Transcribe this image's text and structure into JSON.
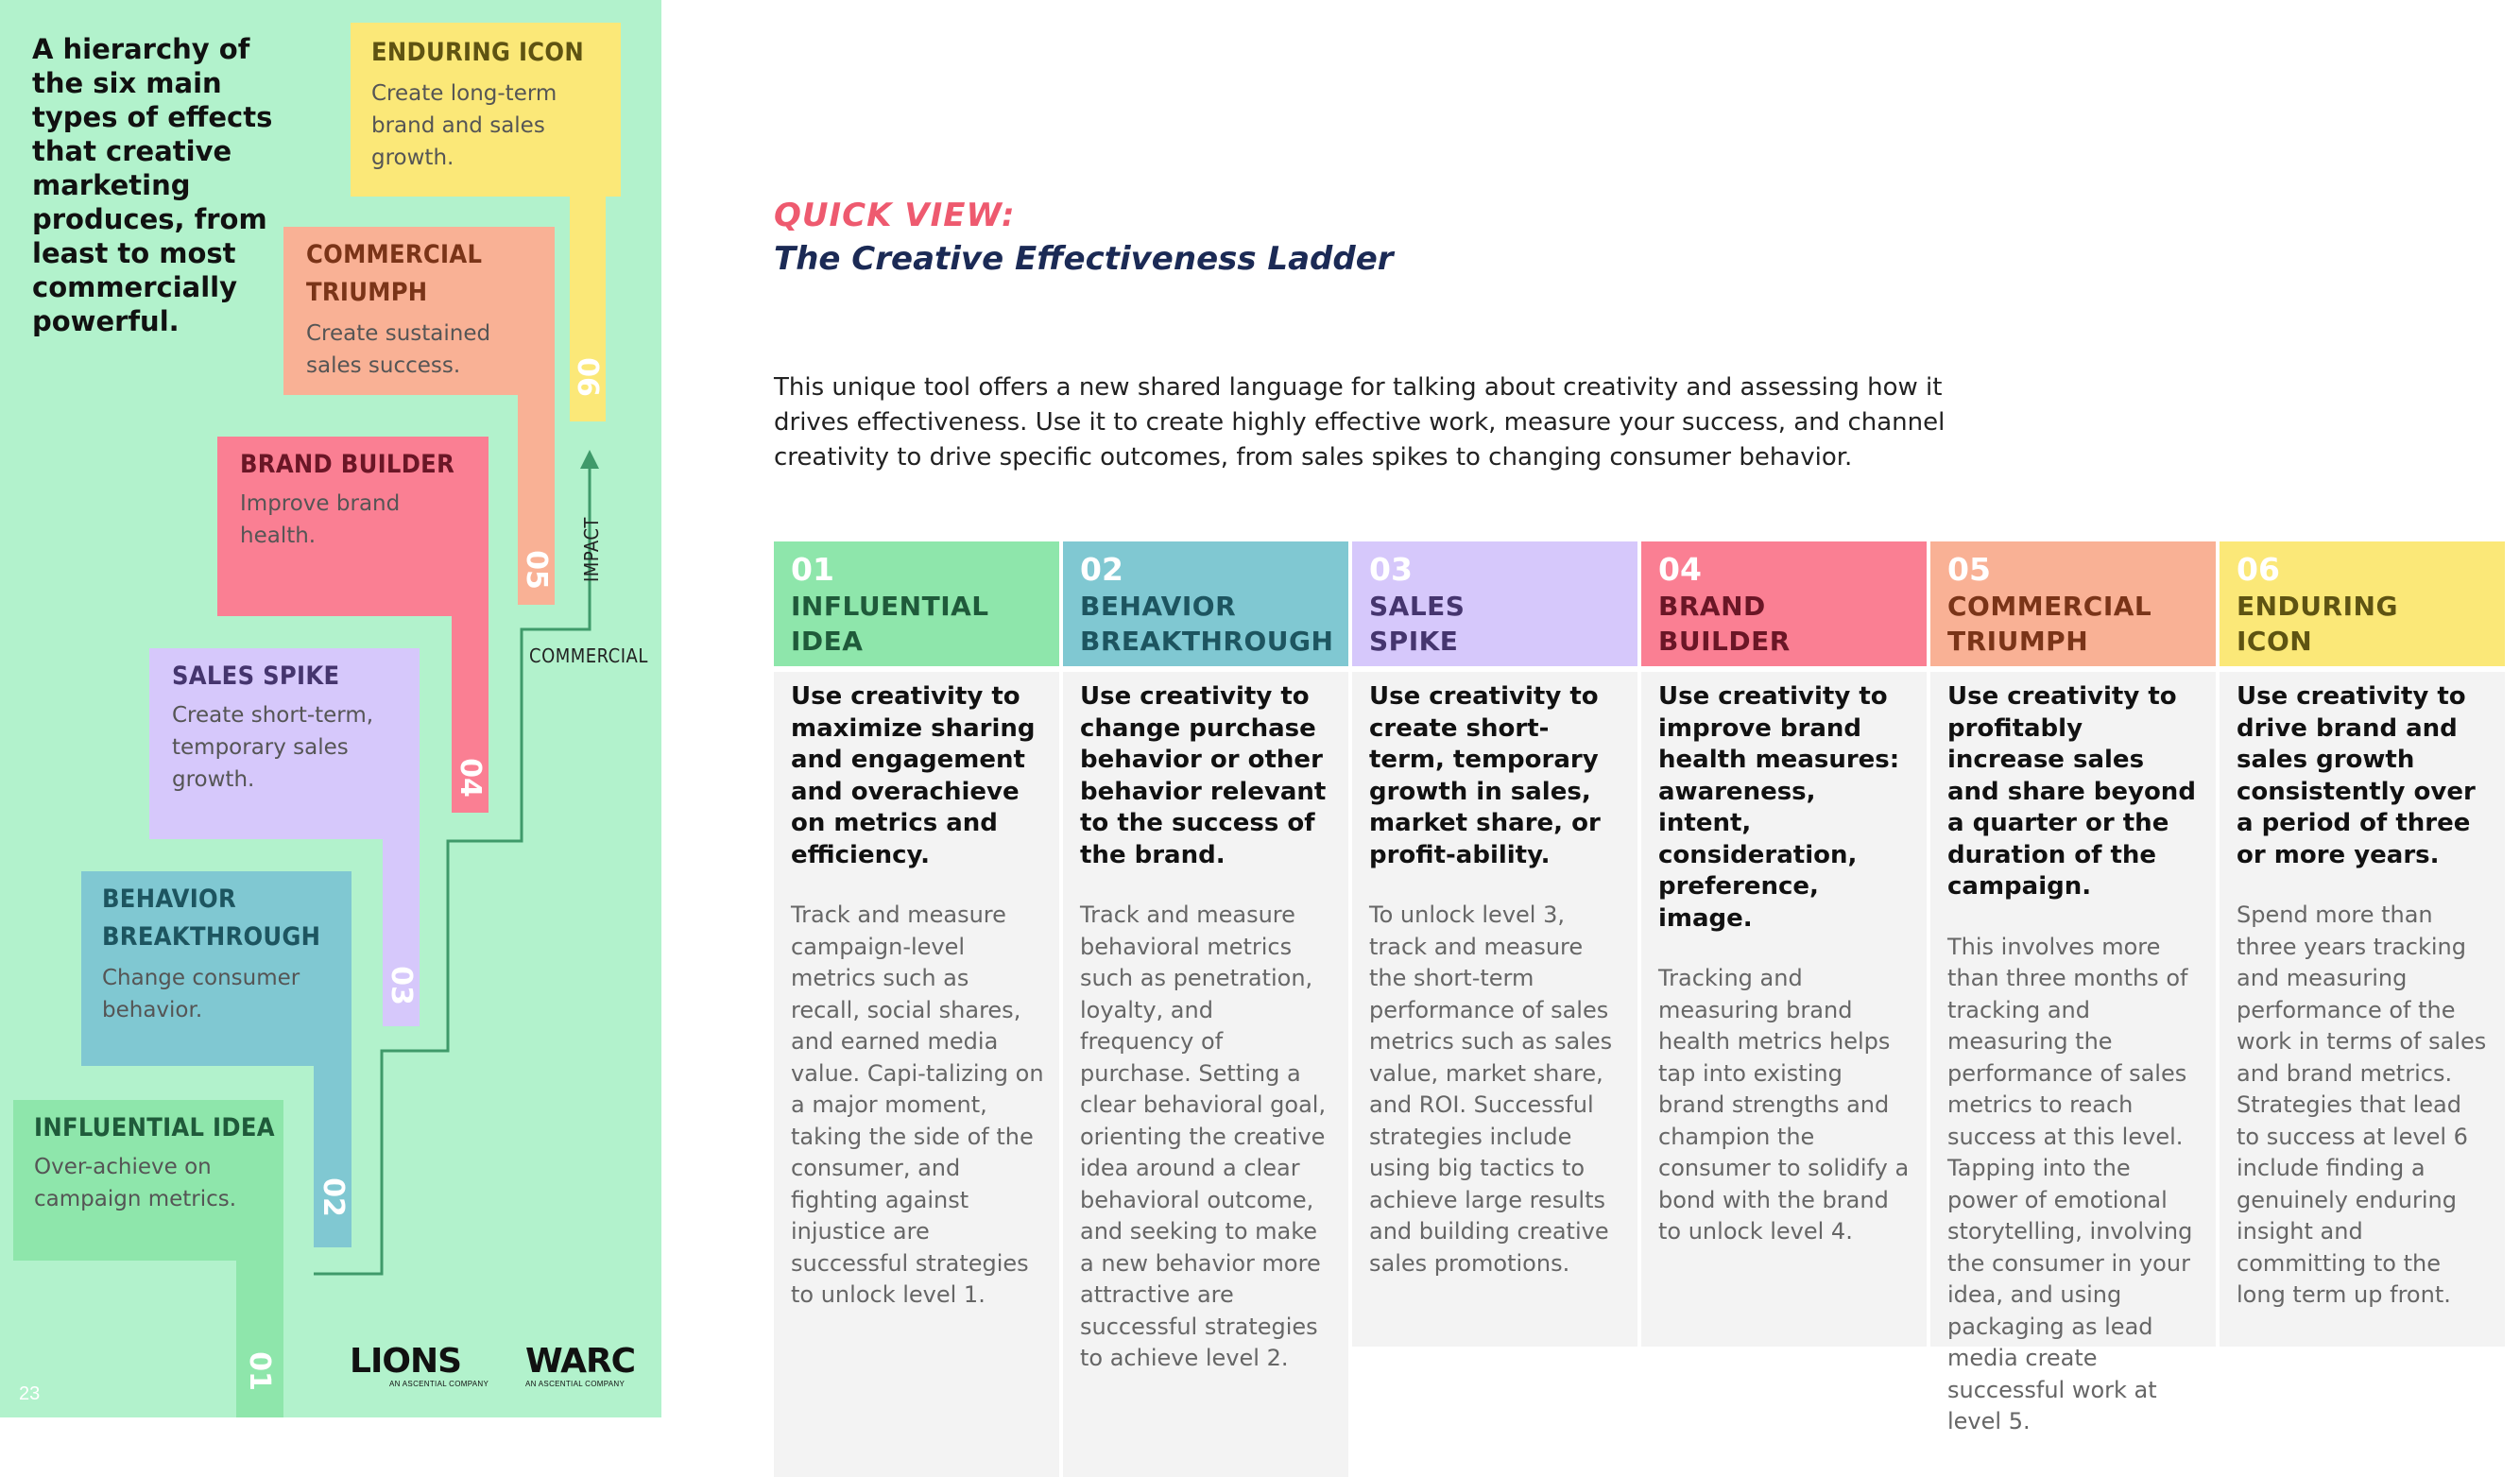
{
  "page_number": "23",
  "intro_text": "A hierarchy of the six main types of effects that creative marketing produces, from least to most commercially powerful.",
  "ladder": {
    "axis_label_commercial": "COMMERCIAL",
    "axis_label_impact": "IMPACT",
    "steps": [
      {
        "number": "01",
        "title": "INFLUENTIAL IDEA",
        "description": "Over-achieve on campaign metrics.",
        "color": "#8ee6ab",
        "title_color": "#1f5a3a"
      },
      {
        "number": "02",
        "title": "BEHAVIOR BREAKTHROUGH",
        "description": "Change consumer behavior.",
        "color": "#80c8d2",
        "title_color": "#1d5560"
      },
      {
        "number": "03",
        "title": "SALES SPIKE",
        "description": "Create short-term, temporary sales growth.",
        "color": "#d6c8fb",
        "title_color": "#45356e"
      },
      {
        "number": "04",
        "title": "BRAND BUILDER",
        "description": "Improve brand health.",
        "color": "#fa7f93",
        "title_color": "#6a1626"
      },
      {
        "number": "05",
        "title": "COMMERCIAL TRIUMPH",
        "description": "Create sustained sales success.",
        "color": "#f9b195",
        "title_color": "#7a3418"
      },
      {
        "number": "06",
        "title": "ENDURING ICON",
        "description": "Create long-term brand and sales growth.",
        "color": "#fbe878",
        "title_color": "#5e5312"
      }
    ]
  },
  "logos": {
    "lions": {
      "name": "LIONS",
      "tagline": "AN ASCENTIAL COMPANY"
    },
    "warc": {
      "name": "WARC",
      "tagline": "AN ASCENTIAL COMPANY"
    }
  },
  "header": {
    "kicker": "QUICK VIEW:",
    "title": "The Creative Effectiveness Ladder"
  },
  "lead": "This unique tool offers a new shared language for talking about creativity and assessing how it drives effectiveness. Use it to create highly effective work, measure your success, and channel creativity to drive specific outcomes, from sales spikes to changing consumer behavior.",
  "columns": [
    {
      "number": "01",
      "name_line1": "INFLUENTIAL",
      "name_line2": "IDEA",
      "color": "#8ee6ab",
      "name_color": "#1f5a3a",
      "goal": "Use creativity to maximize sharing and engagement and overachieve on metrics and efficiency.",
      "text": "Track and measure campaign-level metrics such as recall, social shares, and earned media value. Capi-talizing on a major moment, taking the side of the consumer, and fighting against injustice are successful strategies to unlock level 1."
    },
    {
      "number": "02",
      "name_line1": "BEHAVIOR",
      "name_line2": "BREAKTHROUGH",
      "color": "#80c8d2",
      "name_color": "#1d5560",
      "goal": "Use creativity to change purchase behavior or other behavior relevant to the success of the brand.",
      "text": "Track and measure behavioral metrics such as penetration, loyalty, and frequency of purchase. Setting a clear behavioral goal, orienting the creative idea around a clear behavioral outcome, and seeking to make a new behavior more attractive are successful strategies to achieve level 2."
    },
    {
      "number": "03",
      "name_line1": "SALES",
      "name_line2": "SPIKE",
      "color": "#d6c8fb",
      "name_color": "#45356e",
      "goal": "Use creativity to create short-term, temporary growth in sales, market share, or profit-ability.",
      "text": "To unlock level 3, track and measure the short-term performance of sales metrics such as sales value, market share, and ROI. Successful strategies include using big tactics to achieve large results and building creative sales promotions."
    },
    {
      "number": "04",
      "name_line1": "BRAND",
      "name_line2": "BUILDER",
      "color": "#fa7f93",
      "name_color": "#6a1626",
      "goal": "Use creativity to improve brand health measures: awareness, intent, consideration, preference, image.",
      "text": "Tracking and measuring brand health metrics helps tap into existing brand strengths and champion the consumer to solidify a bond with the brand to unlock level 4."
    },
    {
      "number": "05",
      "name_line1": "COMMERCIAL",
      "name_line2": "TRIUMPH",
      "color": "#f9b195",
      "name_color": "#7a3418",
      "goal": "Use creativity to profitably increase sales and share beyond a quarter or the duration of the campaign.",
      "text": "This involves more than three months of tracking and measuring the performance of sales metrics to reach success at this level. Tapping into the power of emotional storytelling, involving the consumer in your idea, and using packaging as lead media create successful work at level 5."
    },
    {
      "number": "06",
      "name_line1": "ENDURING",
      "name_line2": "ICON",
      "color": "#fbe878",
      "name_color": "#5e5312",
      "goal": "Use creativity to drive brand and sales growth consistently over a period of three or more years.",
      "text": "Spend more than three years tracking and measuring performance of the work in terms of sales and brand metrics. Strategies that lead to success at level 6 include finding a genuinely enduring insight and committing to the long term up front."
    }
  ]
}
